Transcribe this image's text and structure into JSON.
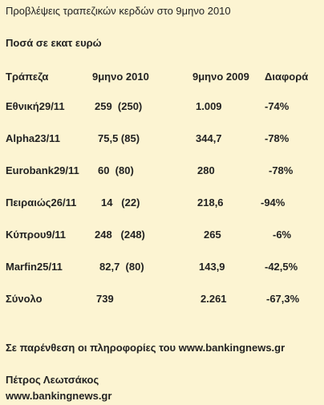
{
  "header": {
    "title": "Προβλέψεις τραπεζικών κερδών στο 9μηνο 2010",
    "subtitle": "Ποσά σε εκατ ευρώ"
  },
  "table": {
    "columns": [
      "Τράπεζα",
      "9μηνο 2010",
      "9μηνο 2009",
      "Διαφορά"
    ],
    "rows": [
      [
        "Εθνική29/11",
        "259  (250)",
        "1.009",
        "-74%"
      ],
      [
        "Alpha23/11",
        "75,5 (85)",
        "344,7",
        "-78%"
      ],
      [
        "Eurobank29/11",
        "60  (80)",
        "280",
        "-78%"
      ],
      [
        "Πειραιώς26/11",
        "14   (22)",
        "218,6",
        "-94%"
      ],
      [
        "Κύπρου9/11",
        "248   (248)",
        "265",
        "-6%"
      ],
      [
        "Marfin25/11",
        "82,7  (80)",
        "143,9",
        "-42,5%"
      ],
      [
        "Σύνολο",
        "739",
        "2.261",
        "-67,3%"
      ]
    ]
  },
  "footer": {
    "note": "Σε παρένθεση οι πληροφορίες του www.bankingnews.gr",
    "author": "Πέτρος Λεωτσάκος",
    "site": "www.bankingnews.gr"
  }
}
